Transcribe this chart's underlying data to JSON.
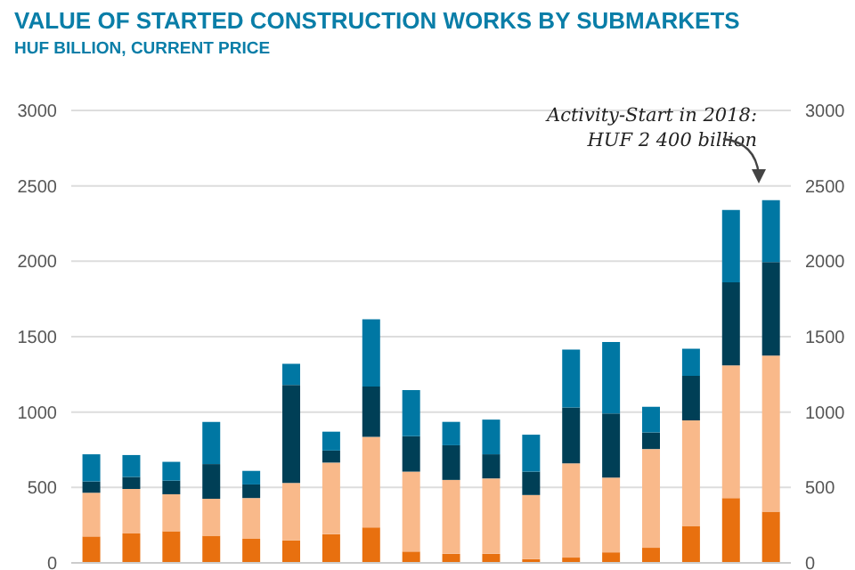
{
  "chart_data": {
    "type": "bar",
    "title": "VALUE OF STARTED CONSTRUCTION WORKS BY SUBMARKETS",
    "subtitle": "HUF BILLION, CURRENT PRICE",
    "categories": [
      null,
      null,
      null,
      null,
      null,
      null,
      null,
      null,
      null,
      null,
      null,
      null,
      null,
      null,
      null,
      null,
      null,
      null
    ],
    "stacked": true,
    "series": [
      {
        "color": "#e8700f",
        "values": [
          175,
          195,
          210,
          180,
          160,
          150,
          190,
          235,
          75,
          60,
          60,
          25,
          35,
          70,
          100,
          245,
          430,
          340
        ]
      },
      {
        "color": "#f9b98a",
        "values": [
          290,
          295,
          245,
          245,
          270,
          380,
          475,
          600,
          530,
          490,
          500,
          425,
          625,
          495,
          655,
          700,
          880,
          1035
        ]
      },
      {
        "color": "#003f56",
        "values": [
          75,
          80,
          90,
          230,
          90,
          650,
          80,
          335,
          235,
          230,
          160,
          155,
          370,
          425,
          110,
          295,
          550,
          620
        ]
      },
      {
        "color": "#0077a3",
        "values": [
          180,
          145,
          125,
          280,
          90,
          140,
          125,
          445,
          305,
          155,
          230,
          245,
          385,
          475,
          170,
          180,
          480,
          410
        ]
      }
    ],
    "ylim": [
      0,
      3000
    ],
    "yticks": [
      0,
      500,
      1000,
      1500,
      2000,
      2500,
      3000
    ],
    "y2lim": [
      0,
      3000
    ],
    "y2ticks": [
      0,
      500,
      1000,
      1500,
      2000,
      2500,
      3000
    ],
    "grid": "y",
    "annotations": [
      "Activity-Start in 2018: HUF 2 400 billion"
    ]
  }
}
